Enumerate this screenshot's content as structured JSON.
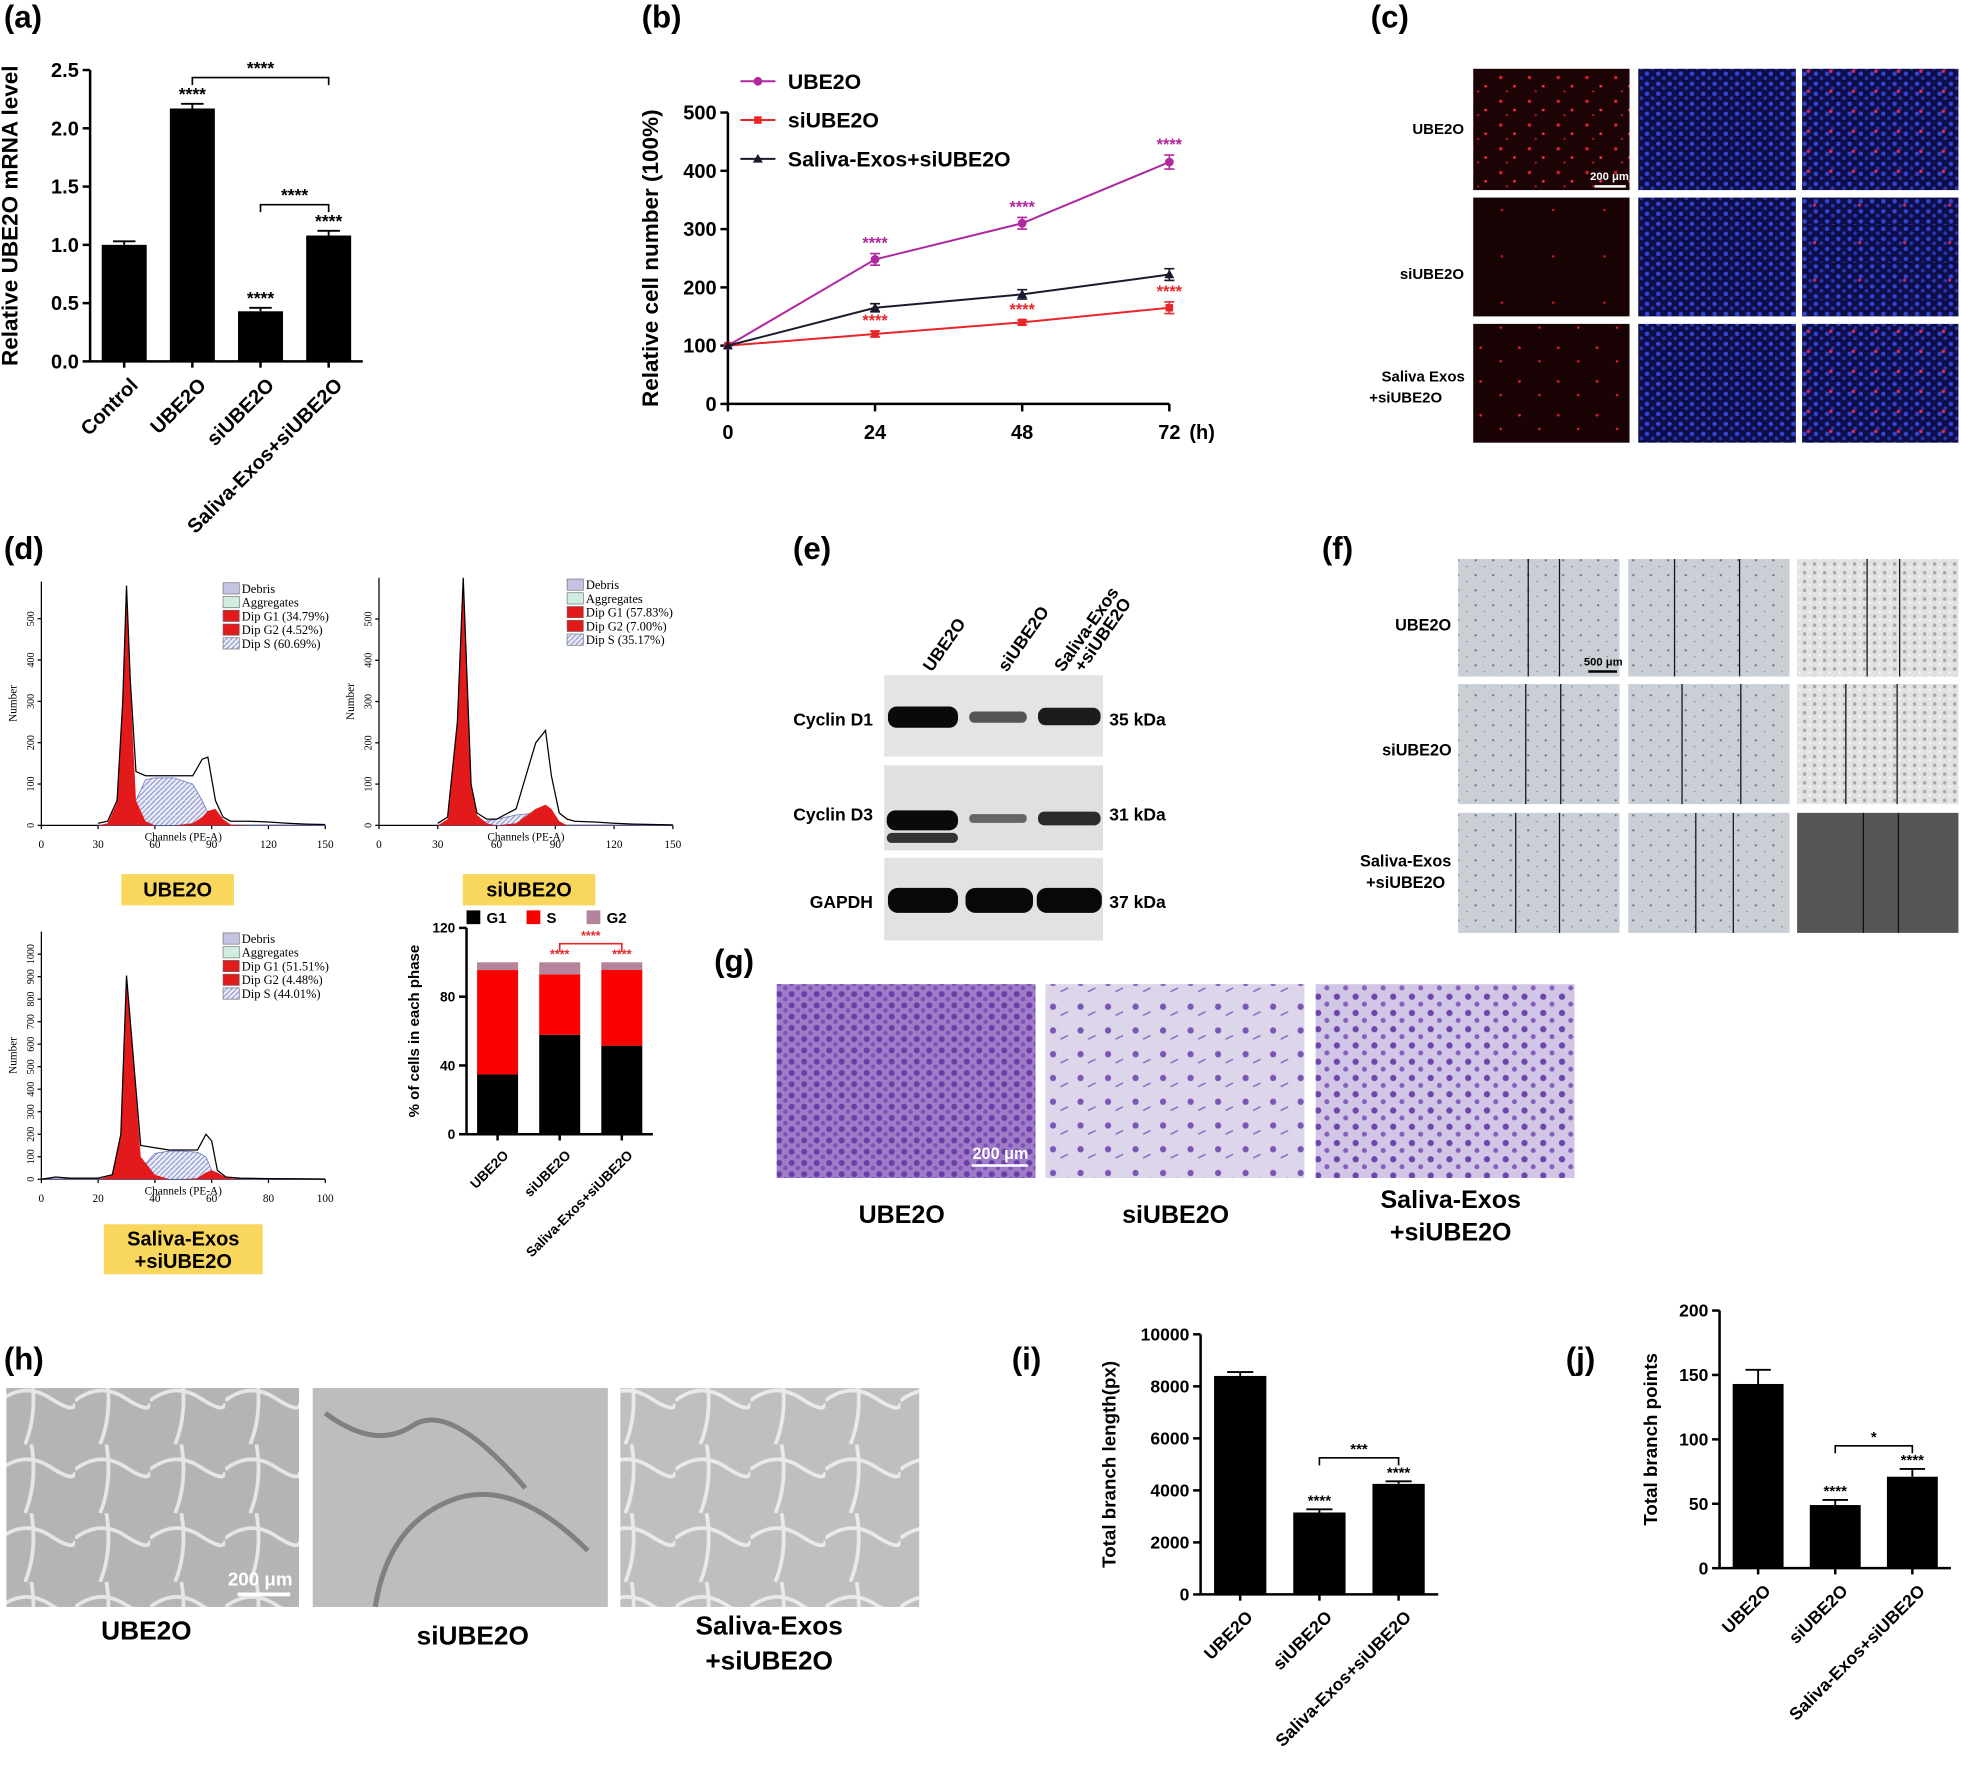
{
  "panel_labels": [
    "(a)",
    "(b)",
    "(c)",
    "(d)",
    "(e)",
    "(f)",
    "(g)",
    "(h)",
    "(i)",
    "(j)"
  ],
  "chart_data": [
    {
      "type": "bar",
      "ylabel": "Relative UBE2O mRNA level",
      "categories": [
        "Control",
        "UBE2O",
        "siUBE2O",
        "Saliva-Exos+siUBE2O"
      ],
      "values": [
        1.0,
        2.17,
        0.43,
        1.08
      ],
      "errors": [
        0.03,
        0.04,
        0.03,
        0.04
      ],
      "color": "#000000",
      "ylim": [
        0,
        2.5
      ],
      "yticks": [
        {
          "value": 0,
          "label": "0.0"
        },
        0.5,
        {
          "value": 1,
          "label": "1.0"
        },
        1.5,
        {
          "value": 2,
          "label": "2.0"
        },
        2.5
      ],
      "annotations": [
        {
          "text": "****",
          "category": 1
        },
        {
          "text": "****",
          "category": 2
        },
        {
          "text": "****",
          "category": 3
        }
      ],
      "brackets": [
        {
          "text": "****",
          "from": 2,
          "to": 3
        },
        {
          "text": "****",
          "from": 1,
          "to": 3
        }
      ]
    },
    {
      "type": "line",
      "ylabel": "Relative cell number (100%)",
      "xunit": "(h)",
      "x": [
        0,
        24,
        48,
        72
      ],
      "xlim": [
        0,
        72
      ],
      "xticks": [
        0,
        24,
        48,
        72
      ],
      "ylim": [
        0,
        500
      ],
      "yticks": [
        0,
        100,
        200,
        300,
        400,
        500
      ],
      "series": [
        {
          "name": "UBE2O",
          "color": "#b0289f",
          "marker": "circle",
          "values": [
            100,
            248,
            310,
            415
          ],
          "errors": [
            0,
            10,
            10,
            12
          ]
        },
        {
          "name": "siUBE2O",
          "color": "#e8262a",
          "marker": "square",
          "values": [
            100,
            120,
            140,
            165
          ],
          "errors": [
            0,
            5,
            4,
            10
          ]
        },
        {
          "name": "Saliva-Exos+siUBE2O",
          "color": "#1a1a2e",
          "marker": "triangle",
          "values": [
            100,
            165,
            188,
            222
          ],
          "errors": [
            0,
            7,
            8,
            10
          ]
        }
      ],
      "annotations": [
        {
          "text": "****",
          "series": 0,
          "index": 1
        },
        {
          "text": "****",
          "series": 0,
          "index": 2
        },
        {
          "text": "****",
          "series": 0,
          "index": 3
        },
        {
          "text": "****",
          "series": 1,
          "index": 1
        },
        {
          "text": "****",
          "series": 1,
          "index": 2
        },
        {
          "text": "****",
          "series": 1,
          "index": 3
        }
      ]
    },
    {
      "type": "flow",
      "xlabel": "Channels (PE-A)",
      "ylabel": "Number",
      "caption": [
        "UBE2O"
      ],
      "legend": [
        {
          "name": "Debris",
          "color": "#c3c3e3"
        },
        {
          "name": "Aggregates",
          "color": "#cfeee0"
        },
        {
          "name": "Dip G1 (34.79%)",
          "color": "#e31a1c"
        },
        {
          "name": "Dip G2 (4.52%)",
          "color": "#e31a1c"
        },
        {
          "name": "Dip S (60.69%)",
          "color": "#9ea6d6",
          "hatch": true
        }
      ],
      "xlim": [
        0,
        150
      ],
      "xticks": [
        0,
        30,
        60,
        90,
        120,
        150
      ],
      "ylim": [
        0,
        590
      ],
      "yticks": [
        0,
        100,
        200,
        300,
        400,
        500
      ],
      "x": [
        30,
        35,
        40,
        43,
        45,
        47,
        50,
        55,
        60,
        70,
        80,
        85,
        88,
        92,
        96,
        100,
        110,
        120,
        130,
        140,
        150
      ],
      "values": [
        5,
        10,
        60,
        300,
        580,
        350,
        130,
        120,
        120,
        120,
        120,
        160,
        165,
        60,
        20,
        10,
        10,
        8,
        5,
        3,
        2
      ],
      "components": [
        {
          "color": "#9ea6d6",
          "hatch": true,
          "values": [
            0,
            0,
            0,
            0,
            0,
            0,
            60,
            110,
            115,
            115,
            100,
            60,
            30,
            10,
            0,
            0,
            0,
            0,
            0,
            0,
            0
          ]
        },
        {
          "color": "#e31a1c",
          "values": [
            0,
            5,
            55,
            295,
            575,
            340,
            60,
            10,
            0,
            0,
            0,
            0,
            0,
            0,
            0,
            0,
            0,
            0,
            0,
            0,
            0
          ]
        },
        {
          "color": "#e31a1c",
          "values": [
            0,
            0,
            0,
            0,
            0,
            0,
            0,
            0,
            0,
            0,
            5,
            20,
            35,
            40,
            15,
            2,
            0,
            0,
            0,
            0,
            0
          ]
        }
      ]
    },
    {
      "type": "flow",
      "xlabel": "Channels (PE-A)",
      "ylabel": "Number",
      "caption": [
        "siUBE2O"
      ],
      "legend": [
        {
          "name": "Debris",
          "color": "#c3c3e3"
        },
        {
          "name": "Aggregates",
          "color": "#cfeee0"
        },
        {
          "name": "Dip G1 (57.83%)",
          "color": "#e31a1c"
        },
        {
          "name": "Dip G2 (7.00%)",
          "color": "#e31a1c"
        },
        {
          "name": "Dip S (35.17%)",
          "color": "#9ea6d6",
          "hatch": true
        }
      ],
      "xlim": [
        0,
        150
      ],
      "xticks": [
        0,
        30,
        60,
        90,
        120,
        150
      ],
      "ylim": [
        0,
        600
      ],
      "yticks": [
        0,
        100,
        200,
        300,
        400,
        500
      ],
      "x": [
        30,
        35,
        40,
        43,
        45,
        47,
        50,
        55,
        60,
        70,
        80,
        85,
        88,
        92,
        96,
        100,
        110,
        120,
        130,
        140,
        150
      ],
      "values": [
        5,
        20,
        250,
        600,
        350,
        100,
        30,
        15,
        15,
        40,
        200,
        230,
        120,
        30,
        15,
        10,
        8,
        5,
        3,
        2,
        1
      ],
      "components": [
        {
          "color": "#9ea6d6",
          "hatch": true,
          "values": [
            0,
            0,
            0,
            0,
            0,
            5,
            5,
            10,
            15,
            25,
            30,
            20,
            10,
            5,
            0,
            0,
            0,
            0,
            0,
            0,
            0
          ]
        },
        {
          "color": "#e31a1c",
          "values": [
            0,
            15,
            245,
            595,
            345,
            95,
            25,
            5,
            0,
            0,
            0,
            0,
            0,
            0,
            0,
            0,
            0,
            0,
            0,
            0,
            0
          ]
        },
        {
          "color": "#e31a1c",
          "values": [
            0,
            0,
            0,
            0,
            0,
            0,
            0,
            0,
            0,
            5,
            40,
            50,
            40,
            10,
            0,
            0,
            0,
            0,
            0,
            0,
            0
          ]
        }
      ]
    },
    {
      "type": "flow",
      "xlabel": "Channels (PE-A)",
      "ylabel": "Number",
      "caption": [
        "Saliva-Exos",
        "+siUBE2O"
      ],
      "legend": [
        {
          "name": "Debris",
          "color": "#c3c3e3"
        },
        {
          "name": "Aggregates",
          "color": "#cfeee0"
        },
        {
          "name": "Dip G1 (51.51%)",
          "color": "#e31a1c"
        },
        {
          "name": "Dip G2 (4.48%)",
          "color": "#e31a1c"
        },
        {
          "name": "Dip S (44.01%)",
          "color": "#9ea6d6",
          "hatch": true
        }
      ],
      "xlim": [
        0,
        100
      ],
      "xticks": [
        0,
        20,
        40,
        60,
        80,
        100
      ],
      "ylim": [
        0,
        1100
      ],
      "yticks": [
        0,
        100,
        200,
        300,
        400,
        500,
        600,
        700,
        800,
        900,
        1000
      ],
      "x": [
        0,
        5,
        10,
        20,
        25,
        28,
        30,
        32,
        35,
        40,
        45,
        50,
        55,
        58,
        60,
        62,
        65,
        70,
        80,
        90,
        100
      ],
      "values": [
        0,
        10,
        5,
        5,
        20,
        200,
        905,
        600,
        150,
        140,
        130,
        130,
        130,
        200,
        170,
        40,
        10,
        5,
        3,
        2,
        1
      ],
      "components": [
        {
          "color": "#9ea6d6",
          "hatch": true,
          "values": [
            0,
            0,
            0,
            0,
            0,
            0,
            0,
            10,
            45,
            115,
            125,
            125,
            120,
            100,
            40,
            5,
            0,
            0,
            0,
            0,
            0
          ]
        },
        {
          "color": "#e31a1c",
          "values": [
            0,
            0,
            0,
            0,
            18,
            195,
            900,
            590,
            100,
            20,
            0,
            0,
            0,
            0,
            0,
            0,
            0,
            0,
            0,
            0,
            0
          ]
        },
        {
          "color": "#e31a1c",
          "values": [
            0,
            0,
            0,
            0,
            0,
            0,
            0,
            0,
            0,
            0,
            0,
            0,
            5,
            30,
            40,
            30,
            8,
            0,
            0,
            0,
            0
          ]
        }
      ]
    },
    {
      "type": "stacked-bar",
      "ylabel": "% of cells in each phase",
      "categories": [
        "UBE2O",
        "siUBE2O",
        "Saliva-Exos+siUBE2O"
      ],
      "series": [
        {
          "name": "G1",
          "color": "#000000",
          "values": [
            34.79,
            57.83,
            51.51
          ]
        },
        {
          "name": "S",
          "color": "#fa0000",
          "values": [
            60.69,
            35.17,
            44.01
          ]
        },
        {
          "name": "G2",
          "color": "#b3849c",
          "values": [
            4.52,
            7.0,
            4.48
          ]
        }
      ],
      "ylim": [
        0,
        120
      ],
      "yticks": [
        0,
        40,
        80,
        120
      ],
      "annotations": [
        {
          "text": "****",
          "category": 1,
          "color": "#e8262a"
        },
        {
          "text": "****",
          "category": 2,
          "color": "#e8262a"
        }
      ],
      "brackets": [
        {
          "text": "****",
          "from": 1,
          "to": 2,
          "color": "#e8262a"
        }
      ]
    },
    {
      "type": "bar",
      "ylabel": "Total branch length(px)",
      "categories": [
        "UBE2O",
        "siUBE2O",
        "Saliva-Exos+siUBE2O"
      ],
      "values": [
        8400,
        3150,
        4250
      ],
      "errors": [
        150,
        120,
        100
      ],
      "color": "#000000",
      "ylim": [
        0,
        10000
      ],
      "yticks": [
        0,
        2000,
        4000,
        6000,
        8000,
        10000
      ],
      "annotations": [
        {
          "text": "****",
          "category": 1
        },
        {
          "text": "****",
          "category": 2
        }
      ],
      "brackets": [
        {
          "text": "***",
          "from": 1,
          "to": 2
        }
      ]
    },
    {
      "type": "bar",
      "ylabel": "Total branch points",
      "categories": [
        "UBE2O",
        "siUBE2O",
        "Saliva-Exos+siUBE2O"
      ],
      "values": [
        143,
        49,
        71
      ],
      "errors": [
        11,
        4,
        6
      ],
      "color": "#000000",
      "ylim": [
        0,
        200
      ],
      "yticks": [
        0,
        50,
        100,
        150,
        200
      ],
      "annotations": [
        {
          "text": "****",
          "category": 1
        },
        {
          "text": "****",
          "category": 2
        }
      ],
      "brackets": [
        {
          "text": "*",
          "from": 1,
          "to": 2
        }
      ]
    }
  ],
  "panel_c": {
    "rows": [
      [
        "UBE2O"
      ],
      [
        "siUBE2O"
      ],
      [
        "Saliva Exos",
        "+siUBE2O"
      ]
    ],
    "scale_bar": "200 μm"
  },
  "panel_e": {
    "columns": [
      [
        "UBE2O"
      ],
      [
        "siUBE2O"
      ],
      [
        "Saliva-Exos",
        "+siUBE2O"
      ]
    ],
    "rows": [
      {
        "protein": "Cyclin D1",
        "size": "35 kDa"
      },
      {
        "protein": "Cyclin D3",
        "size": "31 kDa"
      },
      {
        "protein": "GAPDH",
        "size": "37 kDa"
      }
    ]
  },
  "panel_f": {
    "rows": [
      [
        "UBE2O"
      ],
      [
        "siUBE2O"
      ],
      [
        "Saliva-Exos",
        "+siUBE2O"
      ]
    ],
    "scale_bar": "500 μm"
  },
  "panel_g": {
    "labels": [
      [
        "UBE2O"
      ],
      [
        "siUBE2O"
      ],
      [
        "Saliva-Exos",
        "+siUBE2O"
      ]
    ],
    "scale_bar": "200 μm"
  },
  "panel_h": {
    "labels": [
      [
        "UBE2O"
      ],
      [
        "siUBE2O"
      ],
      [
        "Saliva-Exos",
        "+siUBE2O"
      ]
    ],
    "scale_bar": "200 μm"
  }
}
